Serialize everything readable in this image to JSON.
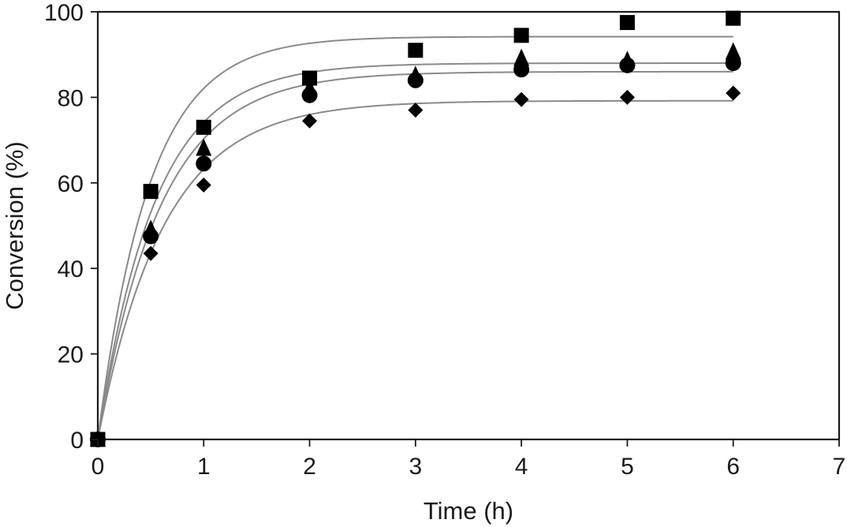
{
  "chart_data": {
    "type": "scatter",
    "title": "",
    "xlabel": "Time (h)",
    "ylabel": "Conversion (%)",
    "xlim": [
      0,
      7
    ],
    "ylim": [
      0,
      100
    ],
    "xticks": [
      0,
      1,
      2,
      3,
      4,
      5,
      6,
      7
    ],
    "yticks": [
      0,
      20,
      40,
      60,
      80,
      100
    ],
    "grid": false,
    "legend": "none",
    "series": [
      {
        "marker": "square",
        "x": [
          0,
          0.5,
          1,
          2,
          3,
          4,
          5,
          6
        ],
        "y": [
          0,
          58,
          73,
          84.5,
          91,
          94.5,
          97.5,
          98.5
        ],
        "fit": {
          "plateau": 94.2,
          "rate": 2.05
        }
      },
      {
        "marker": "triangle",
        "x": [
          0,
          0.5,
          1,
          2,
          3,
          4,
          5,
          6
        ],
        "y": [
          0,
          49,
          68,
          82,
          85,
          89,
          88.5,
          90.5
        ],
        "fit": {
          "plateau": 88.0,
          "rate": 1.85
        }
      },
      {
        "marker": "circle",
        "x": [
          0,
          0.5,
          1,
          2,
          3,
          4,
          5,
          6
        ],
        "y": [
          0,
          47.5,
          64.5,
          80.5,
          84,
          86.5,
          87.5,
          88
        ],
        "fit": {
          "plateau": 86.0,
          "rate": 1.7
        }
      },
      {
        "marker": "diamond",
        "x": [
          0,
          0.5,
          1,
          2,
          3,
          4,
          5,
          6
        ],
        "y": [
          0,
          43.5,
          59.5,
          74.5,
          77,
          79.5,
          80,
          81
        ],
        "fit": {
          "plateau": 79.2,
          "rate": 1.6
        }
      }
    ],
    "colors": {
      "markers": "#000000",
      "curves": "#8a8a8a",
      "axes": "#1a1a1a"
    }
  }
}
